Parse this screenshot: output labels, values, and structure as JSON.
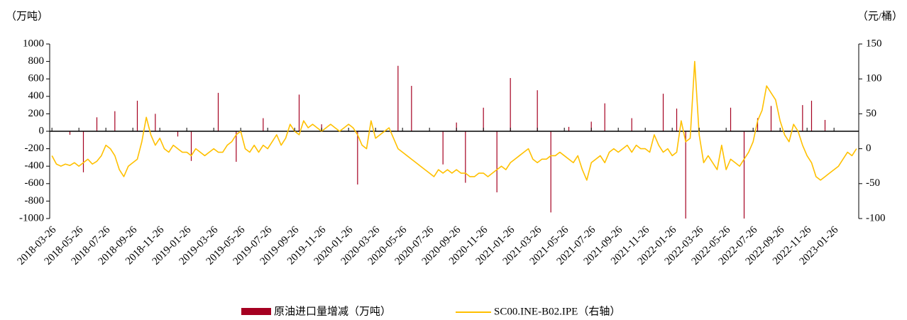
{
  "chart_data": {
    "type": "bar-line",
    "y_label": "（万吨）",
    "y2_label": "（元/桶）",
    "categories": [
      "2018-03-26",
      null,
      null,
      null,
      null,
      null,
      "2018-05-26",
      null,
      null,
      null,
      null,
      null,
      "2018-07-26",
      null,
      null,
      null,
      null,
      null,
      "2018-09-26",
      null,
      null,
      null,
      null,
      null,
      "2018-11-26",
      null,
      null,
      null,
      null,
      null,
      "2019-01-26",
      null,
      null,
      null,
      null,
      null,
      "2019-03-26",
      null,
      null,
      null,
      null,
      null,
      "2019-05-26",
      null,
      null,
      null,
      null,
      null,
      "2019-07-26",
      null,
      null,
      null,
      null,
      null,
      "2019-09-26",
      null,
      null,
      null,
      null,
      null,
      "2019-11-26",
      null,
      null,
      null,
      null,
      null,
      "2020-01-26",
      null,
      null,
      null,
      null,
      null,
      "2020-03-26",
      null,
      null,
      null,
      null,
      null,
      "2020-05-26",
      null,
      null,
      null,
      null,
      null,
      "2020-07-26",
      null,
      null,
      null,
      null,
      null,
      "2020-09-26",
      null,
      null,
      null,
      null,
      null,
      "2020-11-26",
      null,
      null,
      null,
      null,
      null,
      "2021-01-26",
      null,
      null,
      null,
      null,
      null,
      "2021-03-26",
      null,
      null,
      null,
      null,
      null,
      "2021-05-26",
      null,
      null,
      null,
      null,
      null,
      "2021-07-26",
      null,
      null,
      null,
      null,
      null,
      "2021-09-26",
      null,
      null,
      null,
      null,
      null,
      "2021-11-26",
      null,
      null,
      null,
      null,
      null,
      "2022-01-26",
      null,
      null,
      null,
      null,
      null,
      "2022-03-26",
      null,
      null,
      null,
      null,
      null,
      "2022-05-26",
      null,
      null,
      null,
      null,
      null,
      "2022-07-26",
      null,
      null,
      null,
      null,
      null,
      "2022-09-26",
      null,
      null,
      null,
      null,
      null,
      "2022-11-26",
      null,
      null,
      null,
      null,
      null,
      "2023-01-26",
      null,
      null,
      null,
      null,
      null
    ],
    "series": [
      {
        "name": "原油进口量增减（万吨）",
        "type": "bar",
        "color": "#a50021",
        "values": [
          0,
          0,
          0,
          0,
          -40,
          0,
          0,
          -470,
          0,
          0,
          160,
          0,
          0,
          0,
          230,
          0,
          0,
          0,
          0,
          350,
          0,
          0,
          0,
          200,
          0,
          0,
          0,
          0,
          -60,
          0,
          0,
          -340,
          0,
          0,
          0,
          0,
          0,
          440,
          0,
          0,
          0,
          -350,
          0,
          0,
          0,
          0,
          0,
          150,
          0,
          0,
          0,
          0,
          0,
          0,
          0,
          420,
          0,
          0,
          0,
          0,
          80,
          0,
          0,
          0,
          0,
          0,
          0,
          0,
          -610,
          0,
          0,
          0,
          0,
          0,
          0,
          0,
          0,
          750,
          0,
          0,
          520,
          0,
          0,
          0,
          0,
          0,
          0,
          -380,
          0,
          0,
          100,
          0,
          -590,
          0,
          0,
          0,
          270,
          0,
          0,
          -700,
          0,
          0,
          610,
          0,
          0,
          0,
          0,
          0,
          470,
          0,
          0,
          -930,
          0,
          0,
          0,
          50,
          0,
          0,
          0,
          0,
          110,
          0,
          0,
          320,
          0,
          0,
          0,
          0,
          0,
          150,
          0,
          0,
          0,
          0,
          0,
          0,
          430,
          0,
          0,
          260,
          0,
          -1000,
          0,
          0,
          0,
          0,
          0,
          0,
          0,
          0,
          0,
          270,
          0,
          0,
          -1000,
          0,
          0,
          150,
          0,
          0,
          290,
          0,
          0,
          0,
          0,
          0,
          0,
          300,
          0,
          350,
          0,
          0,
          130,
          0,
          0,
          0,
          0,
          0,
          0,
          0
        ]
      },
      {
        "name": "SC00.INE-B02.IPE（右轴）",
        "type": "line",
        "axis": "y2",
        "color": "#ffc000",
        "values": [
          -10,
          -22,
          -25,
          -22,
          -24,
          -20,
          -25,
          -20,
          -15,
          -22,
          -18,
          -10,
          5,
          0,
          -10,
          -30,
          -40,
          -25,
          -20,
          -15,
          10,
          45,
          20,
          5,
          15,
          0,
          -5,
          5,
          0,
          -5,
          -5,
          -10,
          0,
          -5,
          -10,
          -5,
          0,
          -5,
          -5,
          5,
          10,
          20,
          25,
          0,
          -5,
          5,
          -5,
          5,
          0,
          10,
          20,
          5,
          15,
          35,
          25,
          20,
          40,
          30,
          35,
          30,
          25,
          30,
          35,
          30,
          25,
          30,
          35,
          30,
          20,
          5,
          0,
          40,
          15,
          20,
          25,
          30,
          15,
          0,
          -5,
          -10,
          -15,
          -20,
          -25,
          -30,
          -35,
          -40,
          -30,
          -35,
          -30,
          -35,
          -30,
          -35,
          -35,
          -40,
          -40,
          -35,
          -35,
          -40,
          -35,
          -30,
          -25,
          -30,
          -20,
          -15,
          -10,
          -5,
          0,
          -15,
          -20,
          -15,
          -15,
          -10,
          -10,
          -5,
          -10,
          -15,
          -20,
          -10,
          -30,
          -45,
          -20,
          -15,
          -10,
          -20,
          -5,
          0,
          -5,
          0,
          5,
          -5,
          5,
          0,
          0,
          -5,
          20,
          5,
          -5,
          0,
          -10,
          -5,
          40,
          10,
          15,
          125,
          20,
          -20,
          -10,
          -20,
          -30,
          5,
          -30,
          -15,
          -20,
          -25,
          -15,
          -5,
          10,
          40,
          55,
          90,
          80,
          70,
          40,
          20,
          10,
          35,
          25,
          5,
          -10,
          -20,
          -40,
          -45,
          -40,
          -35,
          -30,
          -25,
          -15,
          -5,
          -10,
          0
        ]
      }
    ],
    "ylim": [
      -1000,
      1000
    ],
    "yticks": [
      -1000,
      -800,
      -600,
      -400,
      -200,
      0,
      200,
      400,
      600,
      800,
      1000
    ],
    "y2lim": [
      -100,
      150
    ],
    "y2ticks": [
      -100,
      -50,
      0,
      50,
      100,
      150
    ],
    "legend": "bottom"
  }
}
